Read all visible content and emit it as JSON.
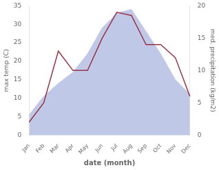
{
  "chart_data": {
    "type": "line",
    "categories": [
      "Jan",
      "Feb",
      "Mar",
      "Apr",
      "May",
      "Jun",
      "Jul",
      "Aug",
      "Sep",
      "Oct",
      "Nov",
      "Dec"
    ],
    "xlabel": "date (month)",
    "ylabel": "max temp (C)",
    "y2label": "med. precipitation (kg/m2)",
    "series": [
      {
        "type": "area",
        "color": "#c0c8e8",
        "values": [
          5.5,
          10.5,
          14,
          17,
          22,
          29,
          33,
          34,
          28,
          22,
          15,
          11
        ]
      },
      {
        "type": "line",
        "color": "#993344",
        "axis": "y2",
        "values": [
          2,
          5,
          13,
          10,
          10,
          15,
          19,
          18.5,
          14,
          14,
          12,
          6
        ]
      }
    ],
    "ylim": [
      0,
      35
    ],
    "yticks": [
      0,
      5,
      10,
      15,
      20,
      25,
      30,
      35
    ],
    "y2lim": [
      0,
      20
    ],
    "y2ticks": [
      0,
      5,
      10,
      15,
      20
    ],
    "grid": false
  }
}
